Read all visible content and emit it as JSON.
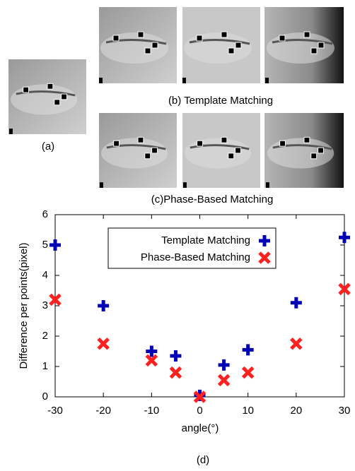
{
  "figure": {
    "label_a": "(a)",
    "caption_b": "(b) Template Matching",
    "caption_c": "(c)Phase-Based Matching",
    "label_d": "(d)"
  },
  "chart_data": {
    "type": "scatter",
    "xlabel": "angle(°)",
    "ylabel": "Difference per points(pixel)",
    "x": [
      -30,
      -20,
      -10,
      -5,
      0,
      5,
      10,
      20,
      30
    ],
    "series": [
      {
        "name": "Template Matching",
        "color": "#0000b4",
        "marker": "plus",
        "values": [
          5.0,
          3.0,
          1.5,
          1.35,
          0.05,
          1.05,
          1.55,
          3.1,
          5.25
        ]
      },
      {
        "name": "Phase-Based Matching",
        "color": "#ff2020",
        "marker": "cross",
        "values": [
          3.2,
          1.75,
          1.2,
          0.8,
          0.0,
          0.55,
          0.8,
          1.75,
          3.55
        ]
      }
    ],
    "xlim": [
      -30,
      30
    ],
    "ylim": [
      0,
      6
    ],
    "xticks": [
      -30,
      -20,
      -10,
      0,
      10,
      20,
      30
    ],
    "yticks": [
      0,
      1,
      2,
      3,
      4,
      5,
      6
    ]
  }
}
